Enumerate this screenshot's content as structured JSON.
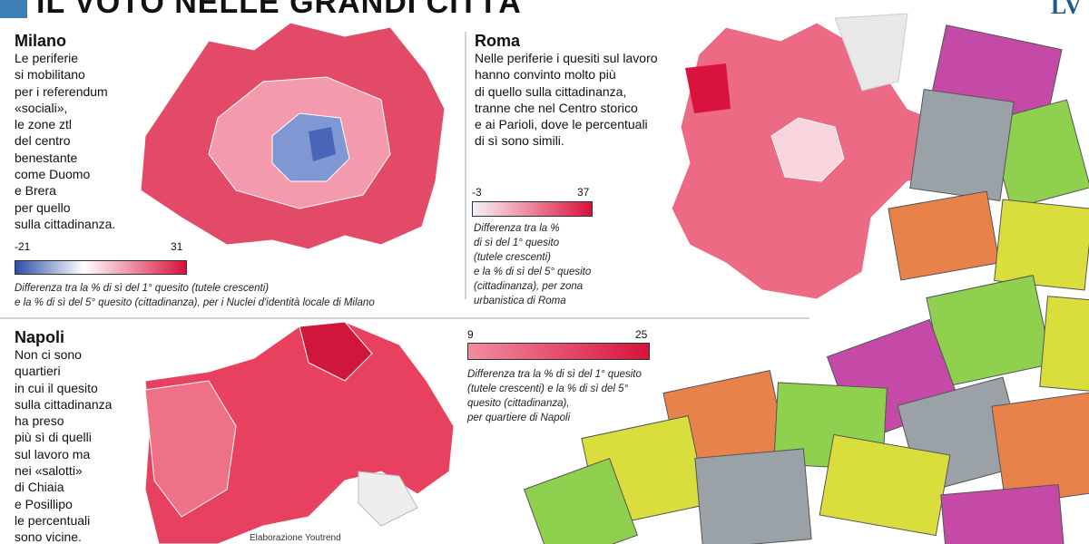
{
  "header": {
    "title": "IL VOTO NELLE GRANDI CITTÀ",
    "logo": "LV"
  },
  "milano": {
    "heading": "Milano",
    "body": [
      "Le periferie",
      "si mobilitano",
      "per i referendum",
      "«sociali»,",
      "le zone ztl",
      "del centro",
      "benestante",
      "come Duomo",
      "e Brera",
      "per quello",
      "sulla cittadinanza."
    ],
    "legend": {
      "min": -21,
      "max": 31
    },
    "caption": [
      "Differenza tra la % di sì del 1° quesito (tutele crescenti)",
      "e la % di sì del 5° quesito (cittadinanza), per i Nuclei d'identità locale di Milano"
    ]
  },
  "roma": {
    "heading": "Roma",
    "body": [
      "Nelle periferie i quesiti sul lavoro",
      "hanno convinto molto più",
      "di quello sulla cittadinanza,",
      "tranne che nel Centro storico",
      "e ai Parioli, dove le percentuali",
      "di sì sono simili."
    ],
    "legend": {
      "min": -3,
      "max": 37
    },
    "caption": [
      "Differenza tra la %",
      "di sì del 1° quesito",
      "(tutele crescenti)",
      "e la % di sì del 5° quesito",
      "(cittadinanza), per zona",
      "urbanistica di Roma"
    ]
  },
  "napoli": {
    "heading": "Napoli",
    "body": [
      "Non ci sono",
      "quartieri",
      "in cui il quesito",
      "sulla cittadinanza",
      "ha preso",
      "più sì di quelli",
      "sul lavoro ma",
      "nei «salotti»",
      "di Chiaia",
      "e Posillipo",
      "le percentuali",
      "sono vicine."
    ],
    "legend": {
      "min": 9,
      "max": 25
    },
    "caption": [
      "Differenza tra la % di sì del 1° quesito",
      "(tutele crescenti) e la % di sì del 5°",
      "quesito (cittadinanza),",
      "per quartiere di Napoli"
    ]
  },
  "footer": {
    "source": "Elaborazione Youtrend"
  }
}
